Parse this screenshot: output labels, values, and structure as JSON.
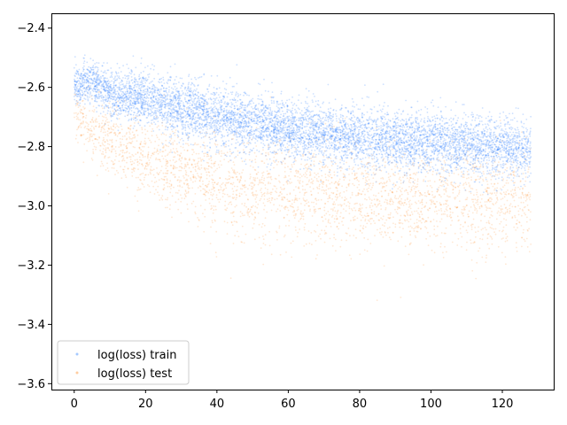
{
  "chart_data": {
    "type": "scatter",
    "title": "",
    "xlabel": "",
    "ylabel": "",
    "xlim": [
      -6.4,
      134.4
    ],
    "ylim": [
      -3.62,
      -2.35
    ],
    "xticks": [
      0,
      20,
      40,
      60,
      80,
      100,
      120
    ],
    "xtick_labels": [
      "0",
      "20",
      "40",
      "60",
      "80",
      "100",
      "120"
    ],
    "yticks": [
      -3.6,
      -3.4,
      -3.2,
      -3.0,
      -2.8,
      -2.6,
      -2.4
    ],
    "ytick_labels": [
      "−3.6",
      "−3.4",
      "−3.2",
      "−3.0",
      "−2.8",
      "−2.6",
      "−2.4"
    ],
    "grid": false,
    "legend": {
      "placement": "lower-left"
    },
    "series": [
      {
        "name": "log(loss) train",
        "color": "#1f77ff",
        "x_range": [
          0,
          128
        ],
        "trend_x": [
          0,
          5,
          10,
          20,
          30,
          40,
          60,
          80,
          100,
          128
        ],
        "trend_y": [
          -2.59,
          -2.58,
          -2.62,
          -2.64,
          -2.67,
          -2.7,
          -2.74,
          -2.77,
          -2.79,
          -2.81
        ],
        "band_halfwidth": [
          0.06,
          0.06,
          0.07,
          0.08,
          0.09,
          0.09,
          0.09,
          0.09,
          0.09,
          0.09
        ]
      },
      {
        "name": "log(loss) test",
        "color": "#ff7f0e",
        "x_range": [
          0,
          128
        ],
        "trend_x": [
          0,
          5,
          10,
          20,
          30,
          40,
          60,
          80,
          100,
          128
        ],
        "trend_y": [
          -2.7,
          -2.73,
          -2.79,
          -2.83,
          -2.88,
          -2.92,
          -2.95,
          -2.97,
          -2.98,
          -2.98
        ],
        "band_halfwidth": [
          0.08,
          0.1,
          0.11,
          0.12,
          0.14,
          0.15,
          0.15,
          0.15,
          0.15,
          0.15
        ]
      }
    ]
  }
}
